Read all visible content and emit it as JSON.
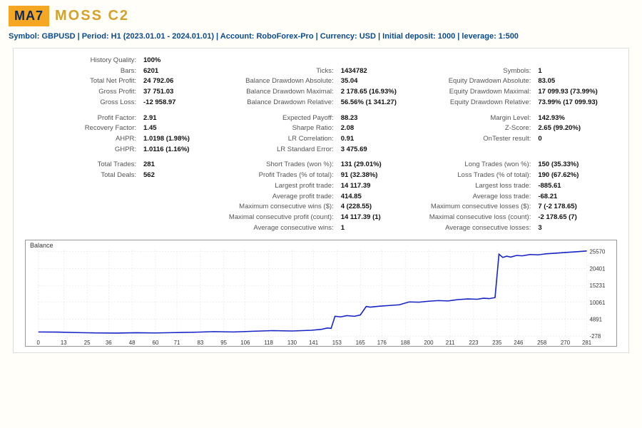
{
  "header": {
    "badge": "MA7",
    "brand": "MOSS C2"
  },
  "infobar": "Symbol: GBPUSD  |  Period: H1 (2023.01.01 - 2024.01.01)  |  Account: RoboForex-Pro  |  Currency: USD  |  Initial deposit: 1000  |  leverage: 1:500",
  "stats": {
    "block1": [
      [
        {
          "k": "History Quality:",
          "v": "100%"
        },
        null,
        null
      ],
      [
        {
          "k": "Bars:",
          "v": "6201"
        },
        {
          "k": "Ticks:",
          "v": "1434782"
        },
        {
          "k": "Symbols:",
          "v": "1"
        }
      ],
      [
        {
          "k": "Total Net Profit:",
          "v": "24 792.06"
        },
        {
          "k": "Balance Drawdown Absolute:",
          "v": "35.04"
        },
        {
          "k": "Equity Drawdown Absolute:",
          "v": "83.05"
        }
      ],
      [
        {
          "k": "Gross Profit:",
          "v": "37 751.03"
        },
        {
          "k": "Balance Drawdown Maximal:",
          "v": "2 178.65 (16.93%)"
        },
        {
          "k": "Equity Drawdown Maximal:",
          "v": "17 099.93 (73.99%)"
        }
      ],
      [
        {
          "k": "Gross Loss:",
          "v": "-12 958.97"
        },
        {
          "k": "Balance Drawdown Relative:",
          "v": "56.56% (1 341.27)"
        },
        {
          "k": "Equity Drawdown Relative:",
          "v": "73.99% (17 099.93)"
        }
      ]
    ],
    "block2": [
      [
        {
          "k": "Profit Factor:",
          "v": "2.91"
        },
        {
          "k": "Expected Payoff:",
          "v": "88.23"
        },
        {
          "k": "Margin Level:",
          "v": "142.93%"
        }
      ],
      [
        {
          "k": "Recovery Factor:",
          "v": "1.45"
        },
        {
          "k": "Sharpe Ratio:",
          "v": "2.08"
        },
        {
          "k": "Z-Score:",
          "v": "2.65 (99.20%)"
        }
      ],
      [
        {
          "k": "AHPR:",
          "v": "1.0198 (1.98%)"
        },
        {
          "k": "LR Correlation:",
          "v": "0.91"
        },
        {
          "k": "OnTester result:",
          "v": "0"
        }
      ],
      [
        {
          "k": "GHPR:",
          "v": "1.0116 (1.16%)"
        },
        {
          "k": "LR Standard Error:",
          "v": "3 475.69"
        },
        null
      ]
    ],
    "block3": [
      [
        {
          "k": "Total Trades:",
          "v": "281"
        },
        {
          "k": "Short Trades (won %):",
          "v": "131 (29.01%)"
        },
        {
          "k": "Long Trades (won %):",
          "v": "150 (35.33%)"
        }
      ],
      [
        {
          "k": "Total Deals:",
          "v": "562"
        },
        {
          "k": "Profit Trades (% of total):",
          "v": "91 (32.38%)"
        },
        {
          "k": "Loss Trades (% of total):",
          "v": "190 (67.62%)"
        }
      ],
      [
        null,
        {
          "k": "Largest profit trade:",
          "v": "14 117.39"
        },
        {
          "k": "Largest loss trade:",
          "v": "-885.61"
        }
      ],
      [
        null,
        {
          "k": "Average profit trade:",
          "v": "414.85"
        },
        {
          "k": "Average loss trade:",
          "v": "-68.21"
        }
      ],
      [
        null,
        {
          "k": "Maximum consecutive wins ($):",
          "v": "4 (228.55)"
        },
        {
          "k": "Maximum consecutive losses ($):",
          "v": "7 (-2 178.65)"
        }
      ],
      [
        null,
        {
          "k": "Maximal consecutive profit (count):",
          "v": "14 117.39 (1)"
        },
        {
          "k": "Maximal consecutive loss (count):",
          "v": "-2 178.65 (7)"
        }
      ],
      [
        null,
        {
          "k": "Average consecutive wins:",
          "v": "1"
        },
        {
          "k": "Average consecutive losses:",
          "v": "3"
        }
      ]
    ]
  },
  "chart": {
    "title": "Balance",
    "type": "line",
    "line_color": "#1522c4",
    "grid_color": "#dddddd",
    "border_color": "#999999",
    "background_color": "#ffffff",
    "x_ticks": [
      0,
      13,
      25,
      36,
      48,
      60,
      71,
      83,
      95,
      106,
      118,
      130,
      141,
      153,
      165,
      176,
      188,
      200,
      211,
      223,
      235,
      246,
      258,
      270,
      281
    ],
    "y_ticks": [
      -278,
      4891,
      10061,
      15231,
      20401,
      25570
    ],
    "ylim": [
      -278,
      26000
    ],
    "xlim": [
      0,
      281
    ],
    "points": [
      [
        0,
        1000
      ],
      [
        10,
        950
      ],
      [
        20,
        800
      ],
      [
        30,
        700
      ],
      [
        40,
        650
      ],
      [
        50,
        750
      ],
      [
        60,
        700
      ],
      [
        70,
        800
      ],
      [
        80,
        900
      ],
      [
        90,
        1100
      ],
      [
        100,
        1000
      ],
      [
        110,
        1200
      ],
      [
        120,
        1400
      ],
      [
        130,
        1300
      ],
      [
        140,
        1500
      ],
      [
        145,
        1800
      ],
      [
        148,
        2200
      ],
      [
        150,
        2100
      ],
      [
        152,
        5800
      ],
      [
        155,
        5600
      ],
      [
        158,
        6000
      ],
      [
        162,
        5800
      ],
      [
        165,
        6200
      ],
      [
        168,
        8800
      ],
      [
        170,
        8600
      ],
      [
        175,
        8900
      ],
      [
        180,
        9100
      ],
      [
        185,
        9300
      ],
      [
        190,
        10200
      ],
      [
        195,
        10100
      ],
      [
        200,
        10400
      ],
      [
        205,
        10600
      ],
      [
        210,
        10500
      ],
      [
        215,
        10900
      ],
      [
        220,
        11100
      ],
      [
        225,
        11000
      ],
      [
        228,
        11300
      ],
      [
        231,
        11200
      ],
      [
        234,
        11500
      ],
      [
        236,
        24800
      ],
      [
        238,
        23800
      ],
      [
        240,
        24200
      ],
      [
        242,
        23900
      ],
      [
        245,
        24400
      ],
      [
        248,
        24300
      ],
      [
        252,
        24700
      ],
      [
        256,
        24600
      ],
      [
        260,
        24900
      ],
      [
        265,
        25100
      ],
      [
        270,
        25300
      ],
      [
        275,
        25500
      ],
      [
        281,
        25792
      ]
    ]
  }
}
